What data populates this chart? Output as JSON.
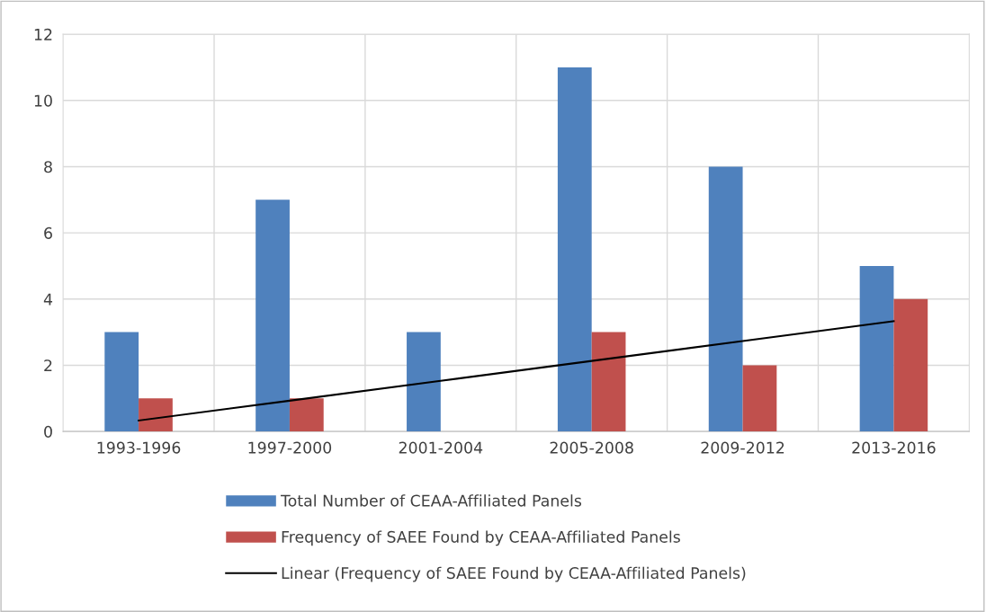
{
  "chart_data": {
    "type": "bar",
    "categories": [
      "1993-1996",
      "1997-2000",
      "2001-2004",
      "2005-2008",
      "2009-2012",
      "2013-2016"
    ],
    "series": [
      {
        "name": "Total Number of CEAA-Affiliated Panels",
        "color": "#4f81bd",
        "values": [
          3,
          7,
          3,
          11,
          8,
          5
        ]
      },
      {
        "name": "Frequency of SAEE Found by CEAA-Affiliated Panels",
        "color": "#c0504d",
        "values": [
          1,
          1,
          0,
          3,
          2,
          4
        ]
      },
      {
        "name": "Linear (Frequency of SAEE Found by CEAA-Affiliated Panels)",
        "type": "line",
        "color": "#000000",
        "values": [
          0.33,
          0.93,
          1.53,
          2.13,
          2.73,
          3.33
        ]
      }
    ],
    "ylim": [
      0,
      12
    ],
    "yticks": [
      0,
      2,
      4,
      6,
      8,
      10,
      12
    ],
    "grid": true,
    "legend": "bottom"
  }
}
